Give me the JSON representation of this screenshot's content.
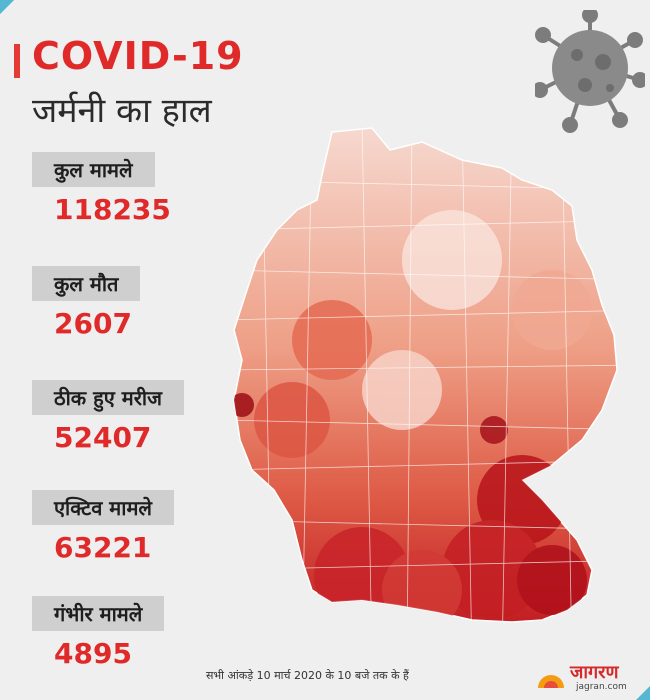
{
  "header": {
    "title": "COVID-19",
    "subtitle": "जर्मनी का हाल"
  },
  "stats": [
    {
      "label": "कुल मामले",
      "value": "118235"
    },
    {
      "label": "कुल मौत",
      "value": "2607"
    },
    {
      "label": "ठीक हुए मरीज",
      "value": "52407"
    },
    {
      "label": "एक्टिव मामले",
      "value": "63221"
    },
    {
      "label": "गंभीर मामले",
      "value": "4895"
    }
  ],
  "footnote": "सभी आंकड़े 10 मार्च 2020 के 10 बजे तक के हैं",
  "logo": {
    "name": "जागरण",
    "url": "jagran.com"
  },
  "colors": {
    "accent": "#e02a2a",
    "border": "#56b7d2",
    "map_light": "#f3c9bd",
    "map_dark": "#b2141a"
  }
}
